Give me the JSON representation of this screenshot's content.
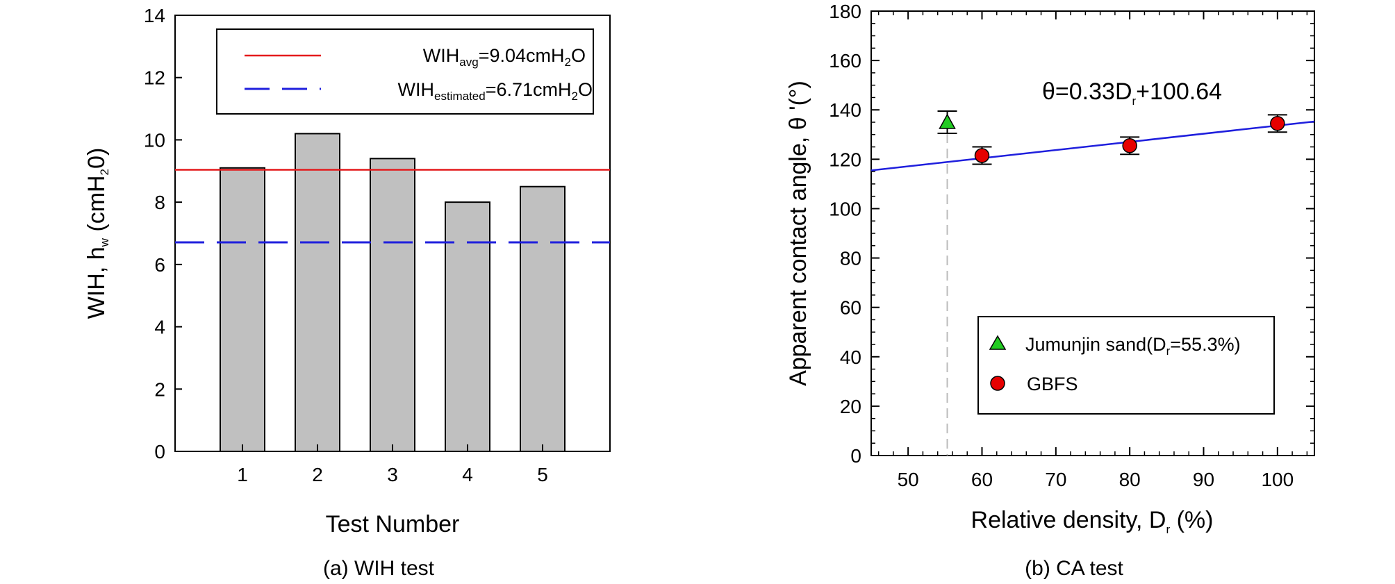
{
  "chart_data": [
    {
      "type": "bar",
      "caption": "(a) WIH test",
      "xlabel": "Test Number",
      "ylabel": {
        "main": "WIH, h",
        "sub": "w",
        "tail": " (cmH",
        "sub2": "2",
        "end": "0)"
      },
      "categories": [
        "1",
        "2",
        "3",
        "4",
        "5"
      ],
      "values": [
        9.1,
        10.2,
        9.4,
        8.0,
        8.5
      ],
      "ylim": [
        0,
        14
      ],
      "yticks": [
        "0",
        "2",
        "4",
        "6",
        "8",
        "10",
        "12",
        "14"
      ],
      "bar_color": "#c0c0c0",
      "reference_lines": [
        {
          "value": 9.04,
          "style": "solid",
          "color": "#e41a1c",
          "label": {
            "main": "WIH",
            "sub": "avg",
            "rest": "=9.04cmH",
            "sub2": "2",
            "end": "O"
          }
        },
        {
          "value": 6.71,
          "style": "dashed",
          "color": "#1f1fdd",
          "label": {
            "main": "WIH",
            "sub": "estimated",
            "rest": "=6.71cmH",
            "sub2": "2",
            "end": "O"
          }
        }
      ],
      "legend_position": "top-right"
    },
    {
      "type": "scatter",
      "caption": "(b) CA test",
      "xlabel": {
        "main": "Relative density, D",
        "sub": "r",
        "tail": " (%)"
      },
      "ylabel": "Apparent contact angle, θ '(°)",
      "xlim": [
        45,
        105
      ],
      "ylim": [
        0,
        180
      ],
      "xticks": [
        "50",
        "60",
        "70",
        "80",
        "90",
        "100"
      ],
      "yticks": [
        "0",
        "20",
        "40",
        "60",
        "80",
        "100",
        "120",
        "140",
        "160",
        "180"
      ],
      "series": [
        {
          "name": {
            "main": "Jumunjin sand(D",
            "sub": "r",
            "rest": "=55.3%)"
          },
          "marker": "triangle",
          "color": "#22cc22",
          "points": [
            {
              "x": 55.3,
              "y": 135,
              "err": 4.5
            }
          ]
        },
        {
          "name": {
            "main": "GBFS",
            "sub": "",
            "rest": ""
          },
          "marker": "circle",
          "color": "#e60000",
          "points": [
            {
              "x": 60,
              "y": 121.5,
              "err": 3.5
            },
            {
              "x": 80,
              "y": 125.5,
              "err": 3.5
            },
            {
              "x": 100,
              "y": 134.5,
              "err": 3.5
            }
          ]
        }
      ],
      "fit_line": {
        "slope": 0.33,
        "intercept": 100.64,
        "color": "#1f1fdd",
        "label": {
          "main": "θ=0.33D",
          "sub": "r",
          "rest": "+100.64"
        }
      },
      "vertical_guide": {
        "x": 55.3,
        "color": "#bbbbbb"
      },
      "legend_position": "bottom-right"
    }
  ]
}
